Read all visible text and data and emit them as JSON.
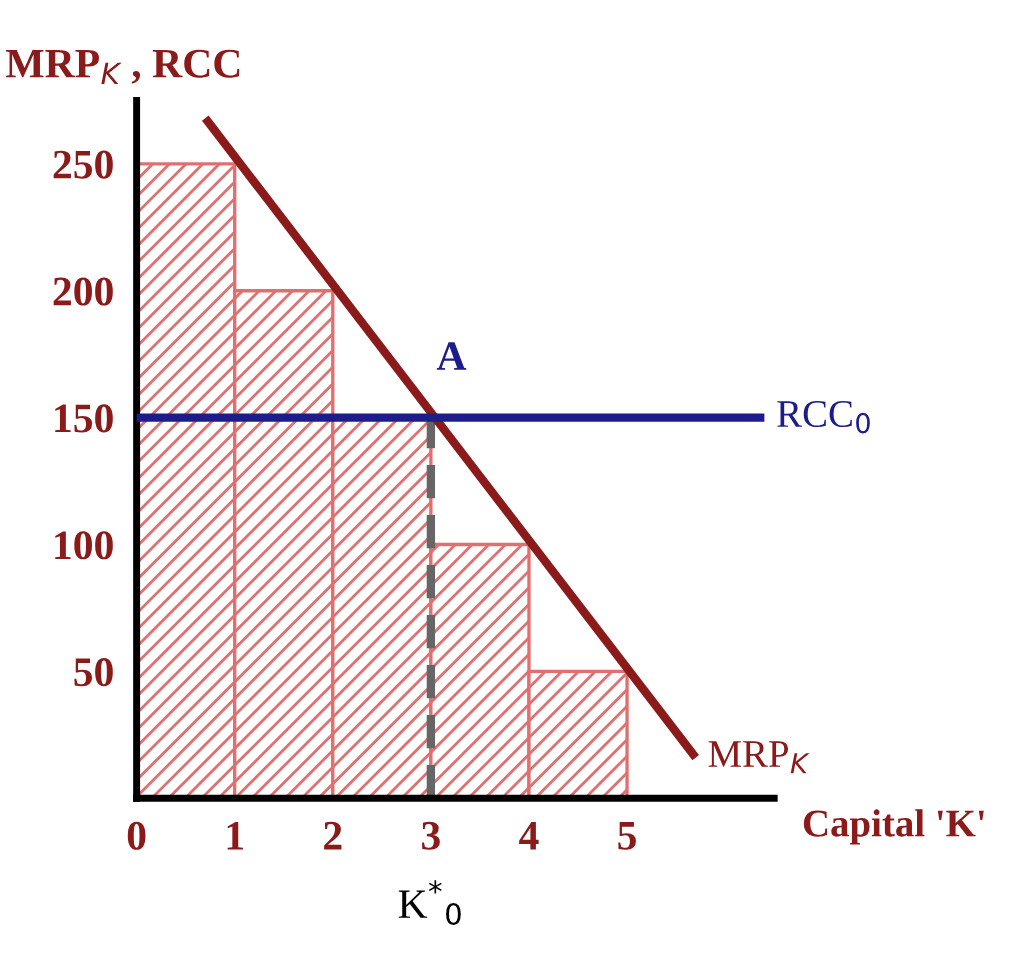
{
  "chart_data": {
    "type": "histogram",
    "ylabel": "MRP$_{K}$ , RCC",
    "xlabel": "Capital 'K'",
    "bins": [
      0,
      1,
      2,
      3,
      4,
      5
    ],
    "values": [
      250,
      200,
      150,
      100,
      50
    ],
    "color": "#e07070",
    "series": [
      {
        "type": "line",
        "name": "MRP$_{K}$",
        "color": "#8b1a1a",
        "x": [
          0.7,
          5.7
        ],
        "values": [
          268,
          16
        ],
        "line_style": "solid"
      },
      {
        "type": "line",
        "name": "RCC$_{0}$",
        "color": "#1c1c8c",
        "x": [
          0,
          6.4
        ],
        "values": [
          150,
          150
        ],
        "line_style": "solid"
      },
      {
        "type": "line",
        "color": "#666666",
        "x": [
          3,
          3
        ],
        "values": [
          0,
          150
        ],
        "line_style": "dashed"
      }
    ],
    "annotations": [
      {
        "text": "A",
        "x": 3,
        "y": 150
      },
      {
        "text": "K$^{*}$$_{0}$",
        "x": 3,
        "y": 0
      }
    ],
    "xlim": [
      0,
      6.5
    ],
    "ylim": [
      0,
      275
    ],
    "xticks": [
      0,
      1,
      2,
      3,
      4,
      5
    ],
    "yticks": [
      50,
      100,
      150,
      200,
      250
    ],
    "grid": false,
    "legend": false
  }
}
